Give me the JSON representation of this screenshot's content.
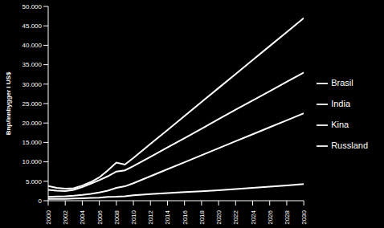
{
  "chart_data": {
    "type": "line",
    "y_label": "Bnp/innbygger i US$",
    "x": [
      2000,
      2001,
      2002,
      2003,
      2004,
      2005,
      2006,
      2007,
      2008,
      2009,
      2010,
      2012,
      2014,
      2016,
      2018,
      2020,
      2022,
      2024,
      2026,
      2028,
      2030
    ],
    "series": [
      {
        "name": "Kina",
        "color": "#ffffff",
        "values": [
          1000,
          1100,
          1150,
          1300,
          1500,
          1750,
          2100,
          2600,
          3300,
          3700,
          4500,
          6300,
          8100,
          9900,
          11700,
          13500,
          15300,
          17100,
          18900,
          20700,
          22500
        ]
      },
      {
        "name": "India",
        "color": "#ffffff",
        "values": [
          450,
          460,
          480,
          550,
          620,
          720,
          800,
          1000,
          1050,
          1150,
          1400,
          1700,
          1950,
          2200,
          2450,
          2700,
          3000,
          3300,
          3600,
          3950,
          4300
        ]
      },
      {
        "name": "Brasil",
        "color": "#ffffff",
        "values": [
          2800,
          2600,
          2500,
          2800,
          3500,
          4400,
          5300,
          6300,
          7500,
          7800,
          8900,
          11300,
          13700,
          16100,
          18500,
          21000,
          23400,
          25800,
          28200,
          30600,
          33000
        ]
      },
      {
        "name": "Russland",
        "color": "#ffffff",
        "values": [
          3800,
          3300,
          3100,
          3200,
          3900,
          4800,
          6000,
          7800,
          9800,
          9300,
          11000,
          14600,
          18200,
          21800,
          25400,
          29000,
          32600,
          36200,
          39800,
          43400,
          47000
        ]
      }
    ],
    "xlim": [
      2000,
      2030
    ],
    "xticks": [
      2000,
      2002,
      2004,
      2006,
      2008,
      2010,
      2012,
      2014,
      2016,
      2018,
      2020,
      2022,
      2024,
      2026,
      2028,
      2030
    ],
    "ylim": [
      0,
      50000
    ],
    "yticks": [
      0,
      {
        "value": 5000,
        "label": "5.000"
      },
      {
        "value": 10000,
        "label": "10.000"
      },
      {
        "value": 15000,
        "label": "15.000"
      },
      {
        "value": 20000,
        "label": "20.000"
      },
      {
        "value": 25000,
        "label": "25.000"
      },
      {
        "value": 30000,
        "label": "30.000"
      },
      {
        "value": 35000,
        "label": "35.000"
      },
      {
        "value": 40000,
        "label": "40.000"
      },
      {
        "value": 45000,
        "label": "45.000"
      },
      {
        "value": 50000,
        "label": "50.000"
      }
    ],
    "grid": false,
    "legend": "right"
  }
}
